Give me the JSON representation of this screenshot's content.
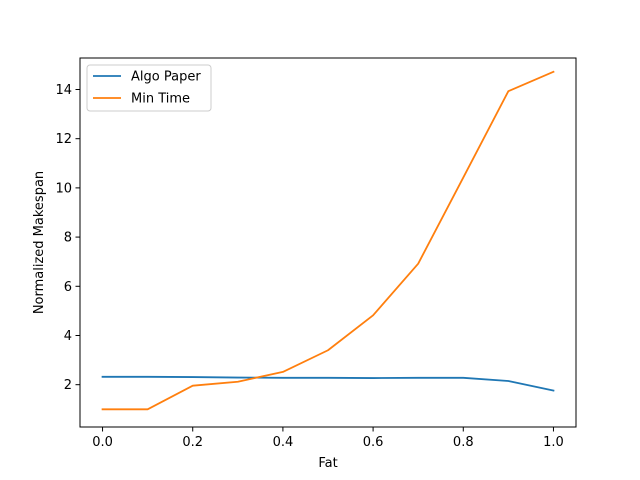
{
  "chart_data": {
    "type": "line",
    "title": "",
    "xlabel": "Fat",
    "ylabel": "Normalized Makespan",
    "xlim": [
      -0.05,
      1.05
    ],
    "ylim": [
      0.28,
      15.28
    ],
    "x": [
      0.0,
      0.1,
      0.2,
      0.3,
      0.4,
      0.5,
      0.6,
      0.7,
      0.8,
      0.9,
      1.0
    ],
    "xticks": [
      0.0,
      0.2,
      0.4,
      0.6,
      0.8,
      1.0
    ],
    "xtick_labels": [
      "0.0",
      "0.2",
      "0.4",
      "0.6",
      "0.8",
      "1.0"
    ],
    "yticks": [
      2,
      4,
      6,
      8,
      10,
      12,
      14
    ],
    "ytick_labels": [
      "2",
      "4",
      "6",
      "8",
      "10",
      "12",
      "14"
    ],
    "grid": false,
    "legend_position": "top-left",
    "series": [
      {
        "name": "Algo Paper",
        "color": "#1f77b4",
        "values": [
          2.32,
          2.32,
          2.31,
          2.29,
          2.28,
          2.28,
          2.27,
          2.28,
          2.28,
          2.15,
          1.76
        ]
      },
      {
        "name": "Min Time",
        "color": "#ff7f0e",
        "values": [
          1.0,
          1.0,
          1.96,
          2.12,
          2.52,
          3.4,
          4.82,
          6.92,
          10.42,
          13.93,
          14.72
        ]
      }
    ]
  }
}
